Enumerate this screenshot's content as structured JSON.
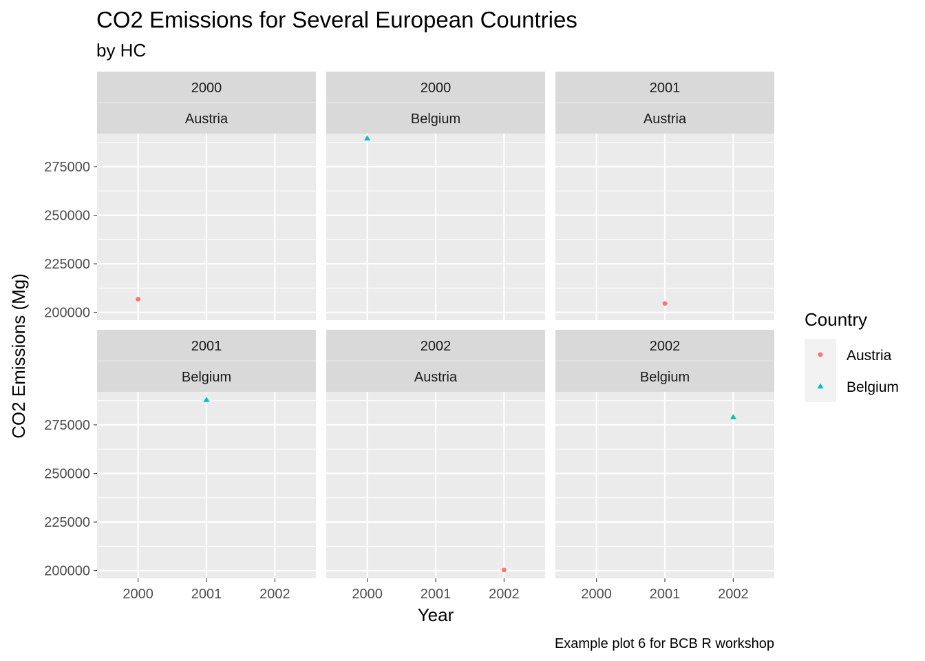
{
  "chart_data": {
    "type": "scatter",
    "title": "CO2 Emissions for Several European Countries",
    "subtitle": "by HC",
    "xlabel": "Year",
    "ylabel": "CO2 Emissions (Mg)",
    "caption": "Example plot 6 for BCB R workshop",
    "x_ticks": [
      "2000",
      "2001",
      "2002"
    ],
    "y_ticks": [
      200000,
      225000,
      250000,
      275000
    ],
    "y_tick_labels": [
      "200000",
      "225000",
      "250000",
      "275000"
    ],
    "xlim": [
      1999.4,
      2002.6
    ],
    "ylim": [
      196000,
      292000
    ],
    "grid": true,
    "facets": "year ~ country (wrapped, 3 columns)",
    "legend": {
      "title": "Country",
      "position": "right",
      "entries": [
        {
          "label": "Austria",
          "shape": "circle",
          "color": "#F8766D"
        },
        {
          "label": "Belgium",
          "shape": "triangle",
          "color": "#00BFC4"
        }
      ]
    },
    "panels": [
      {
        "strip_top": "2000",
        "strip_bottom": "Austria",
        "points": [
          {
            "x": 2000,
            "y": 206800,
            "series": "Austria"
          }
        ]
      },
      {
        "strip_top": "2000",
        "strip_bottom": "Belgium",
        "points": [
          {
            "x": 2000,
            "y": 289600,
            "series": "Belgium"
          }
        ]
      },
      {
        "strip_top": "2001",
        "strip_bottom": "Austria",
        "points": [
          {
            "x": 2001,
            "y": 204600,
            "series": "Austria"
          }
        ]
      },
      {
        "strip_top": "2001",
        "strip_bottom": "Belgium",
        "points": [
          {
            "x": 2001,
            "y": 287900,
            "series": "Belgium"
          }
        ]
      },
      {
        "strip_top": "2002",
        "strip_bottom": "Austria",
        "points": [
          {
            "x": 2002,
            "y": 200300,
            "series": "Austria"
          }
        ]
      },
      {
        "strip_top": "2002",
        "strip_bottom": "Belgium",
        "points": [
          {
            "x": 2002,
            "y": 279000,
            "series": "Belgium"
          }
        ]
      }
    ]
  }
}
